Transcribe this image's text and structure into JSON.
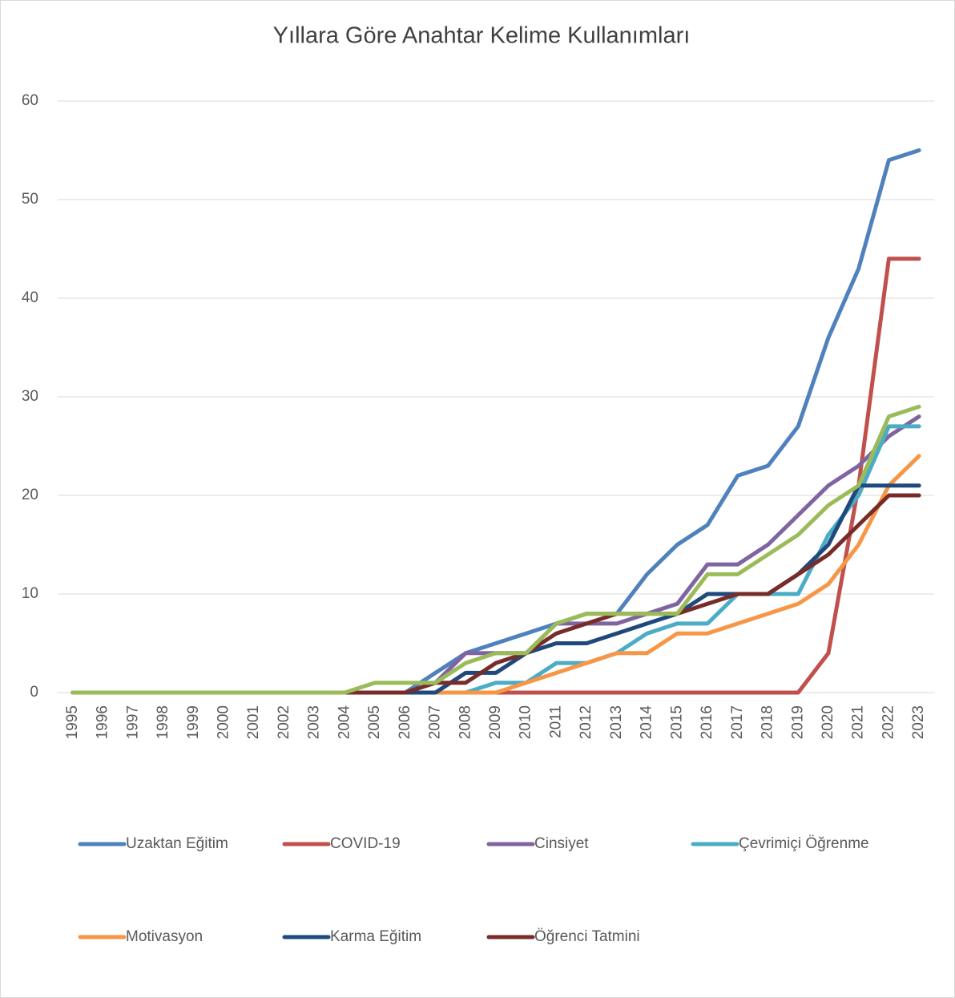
{
  "chart_data": {
    "type": "line",
    "title": "Yıllara Göre Anahtar Kelime Kullanımları",
    "categories": [
      "1995",
      "1996",
      "1997",
      "1998",
      "1999",
      "2000",
      "2001",
      "2002",
      "2003",
      "2004",
      "2005",
      "2006",
      "2007",
      "2008",
      "2009",
      "2010",
      "2011",
      "2012",
      "2013",
      "2014",
      "2015",
      "2016",
      "2017",
      "2018",
      "2019",
      "2020",
      "2021",
      "2022",
      "2023"
    ],
    "ylim": [
      0,
      60
    ],
    "yticks": [
      0,
      10,
      20,
      30,
      40,
      50,
      60
    ],
    "grid": true,
    "legend": "bottom",
    "series": [
      {
        "name": "Uzaktan Eğitim",
        "color": "#4f81bd",
        "values": [
          0,
          0,
          0,
          0,
          0,
          0,
          0,
          0,
          0,
          0,
          0,
          0,
          2,
          4,
          5,
          6,
          7,
          8,
          8,
          12,
          15,
          17,
          22,
          23,
          27,
          36,
          43,
          54,
          55
        ]
      },
      {
        "name": "COVID-19",
        "color": "#c0504d",
        "values": [
          0,
          0,
          0,
          0,
          0,
          0,
          0,
          0,
          0,
          0,
          0,
          0,
          0,
          0,
          0,
          0,
          0,
          0,
          0,
          0,
          0,
          0,
          0,
          0,
          0,
          4,
          21,
          44,
          44
        ]
      },
      {
        "name": "Cinsiyet",
        "color": "#8064a2",
        "values": [
          0,
          0,
          0,
          0,
          0,
          0,
          0,
          0,
          0,
          0,
          0,
          0,
          1,
          4,
          4,
          4,
          7,
          7,
          7,
          8,
          9,
          13,
          13,
          15,
          18,
          21,
          23,
          26,
          28
        ]
      },
      {
        "name": "Çevrimiçi Öğrenme",
        "color": "#4bacc6",
        "values": [
          0,
          0,
          0,
          0,
          0,
          0,
          0,
          0,
          0,
          0,
          0,
          0,
          0,
          0,
          1,
          1,
          3,
          3,
          4,
          6,
          7,
          7,
          10,
          10,
          10,
          16,
          20,
          27,
          27
        ]
      },
      {
        "name": "Motivasyon",
        "color": "#f79646",
        "values": [
          0,
          0,
          0,
          0,
          0,
          0,
          0,
          0,
          0,
          0,
          0,
          0,
          0,
          0,
          0,
          1,
          2,
          3,
          4,
          4,
          6,
          6,
          7,
          8,
          9,
          11,
          15,
          21,
          24
        ]
      },
      {
        "name": "Karma Eğitim",
        "color": "#1f497d",
        "values": [
          0,
          0,
          0,
          0,
          0,
          0,
          0,
          0,
          0,
          0,
          0,
          0,
          0,
          2,
          2,
          4,
          5,
          5,
          6,
          7,
          8,
          10,
          10,
          10,
          12,
          15,
          21,
          21,
          21
        ]
      },
      {
        "name": "Öğrenci Tatmini",
        "color": "#772c2a",
        "values": [
          0,
          0,
          0,
          0,
          0,
          0,
          0,
          0,
          0,
          0,
          0,
          0,
          1,
          1,
          3,
          4,
          6,
          7,
          8,
          8,
          8,
          9,
          10,
          10,
          12,
          14,
          17,
          20,
          20
        ]
      },
      {
        "color": "#9bbb59",
        "values": [
          0,
          0,
          0,
          0,
          0,
          0,
          0,
          0,
          0,
          0,
          1,
          1,
          1,
          3,
          4,
          4,
          7,
          8,
          8,
          8,
          8,
          12,
          12,
          14,
          16,
          19,
          21,
          28,
          29
        ]
      }
    ]
  }
}
